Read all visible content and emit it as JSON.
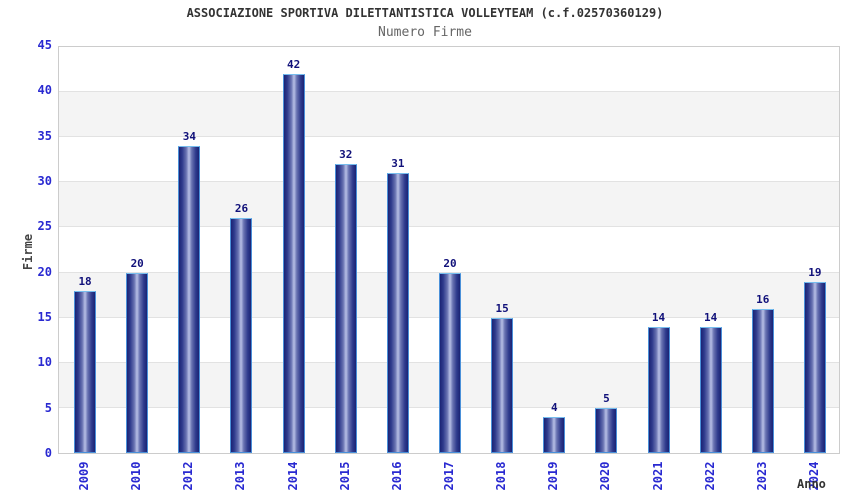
{
  "header": {
    "title": "ASSOCIAZIONE SPORTIVA DILETTANTISTICA VOLLEYTEAM (c.f.02570360129)",
    "subtitle": "Numero Firme"
  },
  "chart_data": {
    "type": "bar",
    "title": "ASSOCIAZIONE SPORTIVA DILETTANTISTICA VOLLEYTEAM (c.f.02570360129)",
    "subtitle": "Numero Firme",
    "xlabel": "Anno",
    "ylabel": "Firme",
    "categories": [
      "2009",
      "2010",
      "2012",
      "2013",
      "2014",
      "2015",
      "2016",
      "2017",
      "2018",
      "2019",
      "2020",
      "2021",
      "2022",
      "2023",
      "2024"
    ],
    "values": [
      18,
      20,
      34,
      26,
      42,
      32,
      31,
      20,
      15,
      4,
      5,
      14,
      14,
      16,
      19
    ],
    "ylim": [
      0,
      45
    ],
    "ytick_step": 5,
    "yticks": [
      0,
      5,
      10,
      15,
      20,
      25,
      30,
      35,
      40,
      45
    ],
    "grid": true,
    "gray_bands": [
      [
        5,
        10
      ],
      [
        15,
        20
      ],
      [
        25,
        30
      ],
      [
        35,
        40
      ]
    ],
    "legend": null,
    "colors": {
      "bar_edge": "#4a90d9",
      "bar_edge_top": "#76bdee",
      "bar_dark": "#1b2374",
      "bar_mid": "#6872b1",
      "bar_light": "#b7bfe6",
      "axis_tick_label": "#2929d1",
      "value_label": "#11117a",
      "title": "#333333",
      "subtitle": "#666666",
      "axis_title": "#444444",
      "band": "#f4f4f4",
      "gridline": "#e2e2e2",
      "plot_border": "#cccccc",
      "background": "#ffffff"
    }
  }
}
